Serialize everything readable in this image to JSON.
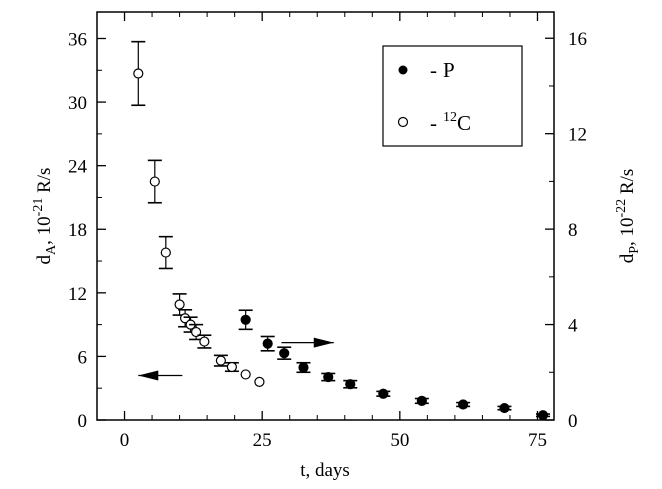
{
  "chart_data": {
    "type": "scatter",
    "xlabel": "t, days",
    "ylabel_left": {
      "main": "d",
      "sub": "A",
      "rest": ", 10",
      "sup": "-21",
      "unit": " R/s"
    },
    "ylabel_right": {
      "main": "d",
      "sub": "P",
      "rest": ", 10",
      "sup": "-22",
      "unit": " R/s"
    },
    "x_ticks": [
      0,
      25,
      50,
      75
    ],
    "y_left_ticks": [
      0,
      6,
      12,
      18,
      24,
      30,
      36
    ],
    "y_right_ticks": [
      0,
      4,
      8,
      12,
      16
    ],
    "xlim": [
      -5,
      78
    ],
    "ylim_left": [
      0,
      38.5
    ],
    "ylim_right": [
      0,
      17.1
    ],
    "legend": {
      "position": "top-right",
      "entries": [
        {
          "marker": "filled-circle",
          "dash": "-",
          "label": "P"
        },
        {
          "marker": "open-circle",
          "dash": "-",
          "sup": "12",
          "label": "C"
        }
      ]
    },
    "series": [
      {
        "marker": "open-circle",
        "axis": "left",
        "x": [
          2.5,
          5.5,
          7.5,
          10,
          11,
          12,
          13,
          14.5,
          17.5,
          19.5,
          22,
          24.5
        ],
        "y": [
          32.7,
          22.5,
          15.8,
          10.9,
          9.6,
          9.0,
          8.3,
          7.4,
          5.6,
          5.0,
          4.3,
          3.6
        ],
        "err": [
          3.0,
          2.0,
          1.5,
          1.0,
          0.8,
          0.7,
          0.7,
          0.6,
          0.5,
          0.4,
          null,
          null
        ]
      },
      {
        "marker": "filled-circle",
        "axis": "right",
        "x": [
          22,
          26,
          29,
          32.5,
          37,
          41,
          47,
          54,
          61.5,
          69,
          76
        ],
        "y": [
          4.2,
          3.2,
          2.8,
          2.2,
          1.8,
          1.5,
          1.1,
          0.8,
          0.65,
          0.5,
          0.2
        ],
        "err": [
          0.4,
          0.3,
          0.25,
          0.2,
          0.15,
          0.15,
          0.1,
          0.1,
          0.08,
          0.07,
          0.05
        ]
      }
    ],
    "annotations": [
      {
        "type": "arrow",
        "direction": "left",
        "meaning": "open circles use left axis",
        "x_from": 10.5,
        "x_to": 2.5,
        "y_left": 4.2
      },
      {
        "type": "arrow",
        "direction": "right",
        "meaning": "filled circles use right axis",
        "x_from": 28.5,
        "x_to": 38,
        "y_left": 7.3
      }
    ]
  }
}
